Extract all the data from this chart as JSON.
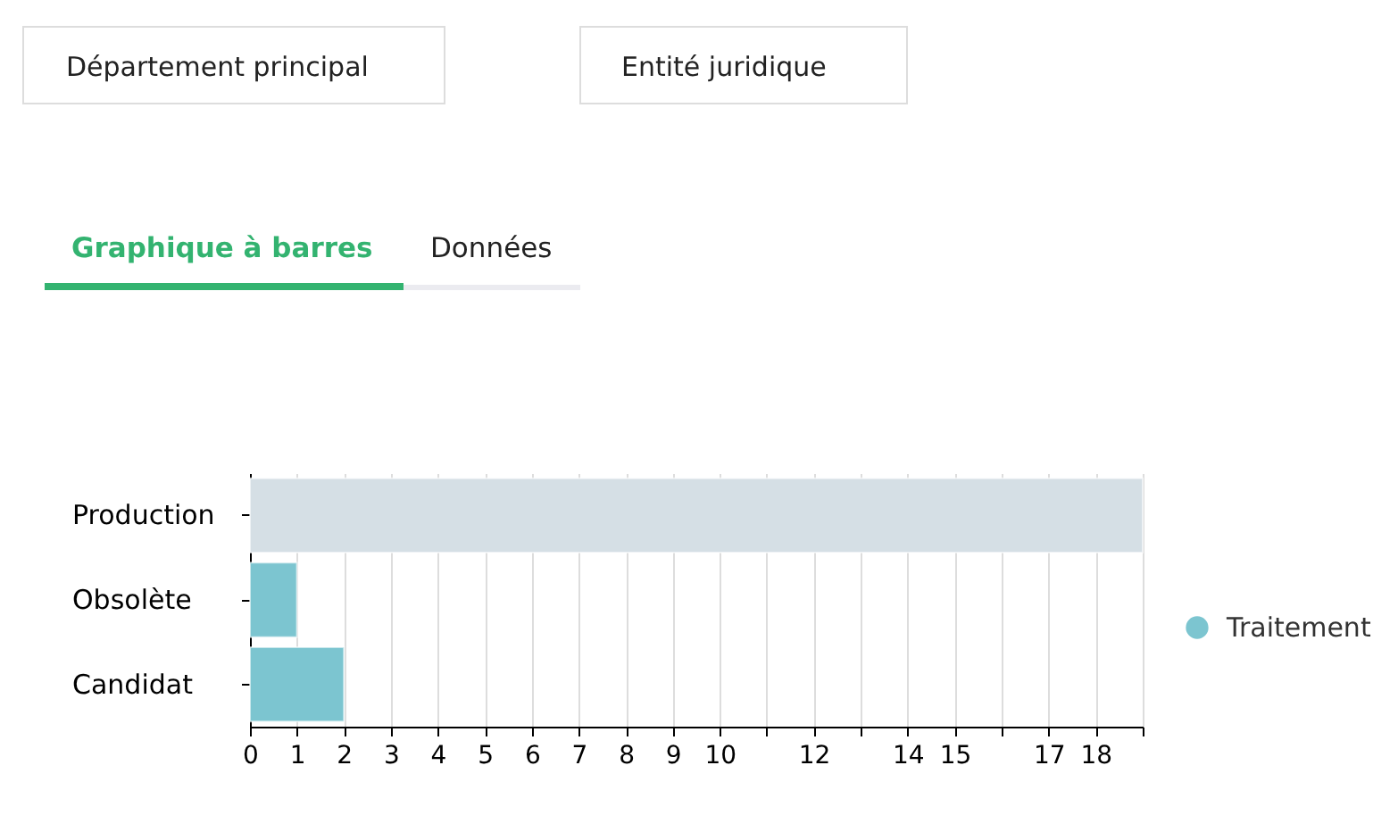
{
  "chart_data": {
    "type": "bar",
    "orientation": "horizontal",
    "categories": [
      "Production",
      "Obsolète",
      "Candidat"
    ],
    "series": [
      {
        "name": "Traitement",
        "color": "#7cc5d0",
        "colors": [
          "#d5dfe5",
          "#7cc5d0",
          "#7cc5d0"
        ],
        "values": [
          19,
          1,
          2
        ]
      }
    ],
    "xlim": [
      0,
      19
    ],
    "xticks": [
      0,
      1,
      2,
      3,
      4,
      5,
      6,
      7,
      8,
      9,
      10,
      {
        "value": 11,
        "label": null
      },
      12,
      {
        "value": 13,
        "label": null
      },
      14,
      15,
      {
        "value": 16,
        "label": null
      },
      17,
      18,
      {
        "value": 19,
        "label": null
      }
    ],
    "grid": "x",
    "legend": "right",
    "annotations": [
      "Département principal",
      "Entité juridique",
      "Graphique à barres",
      "Données"
    ]
  }
}
